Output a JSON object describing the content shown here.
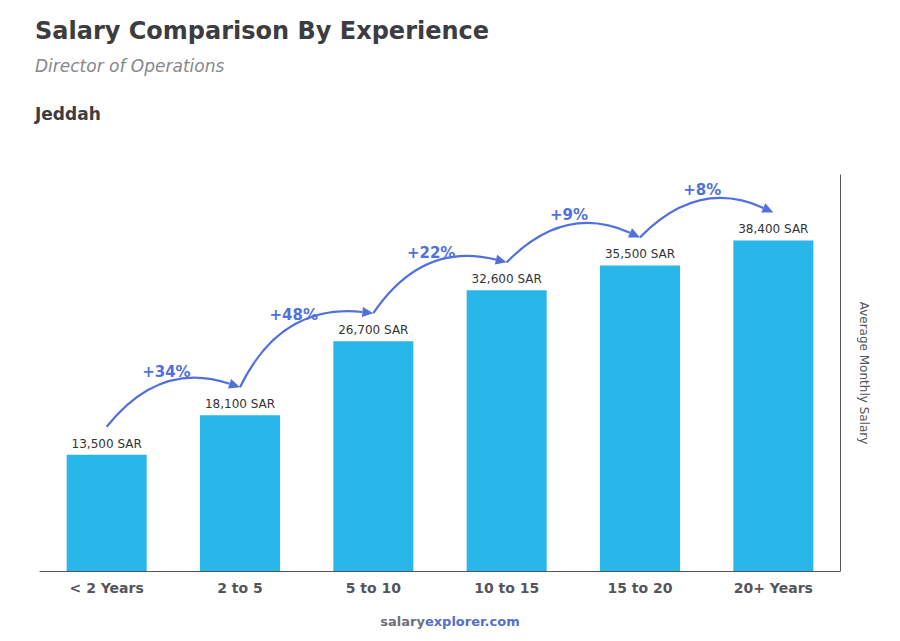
{
  "chart_data": {
    "type": "bar",
    "title": "Salary Comparison By Experience",
    "subtitle": "Director of Operations",
    "city": "Jeddah",
    "ylabel": "Average Monthly Salary",
    "footer": [
      "salary",
      "explorer.com"
    ],
    "categories": [
      "< 2 Years",
      "2 to 5",
      "5 to 10",
      "10 to 15",
      "15 to 20",
      "20+ Years"
    ],
    "values": [
      13500,
      18100,
      26700,
      32600,
      35500,
      38400
    ],
    "value_labels": [
      "13,500 SAR",
      "18,100 SAR",
      "26,700 SAR",
      "32,600 SAR",
      "35,500 SAR",
      "38,400 SAR"
    ],
    "data_labels": true,
    "annotations": [
      "+34%",
      "+48%",
      "+22%",
      "+9%",
      "+8%"
    ],
    "color": "#29b6e8",
    "ylim": [
      0,
      46000
    ],
    "tick_labels": "x",
    "grid": false
  }
}
